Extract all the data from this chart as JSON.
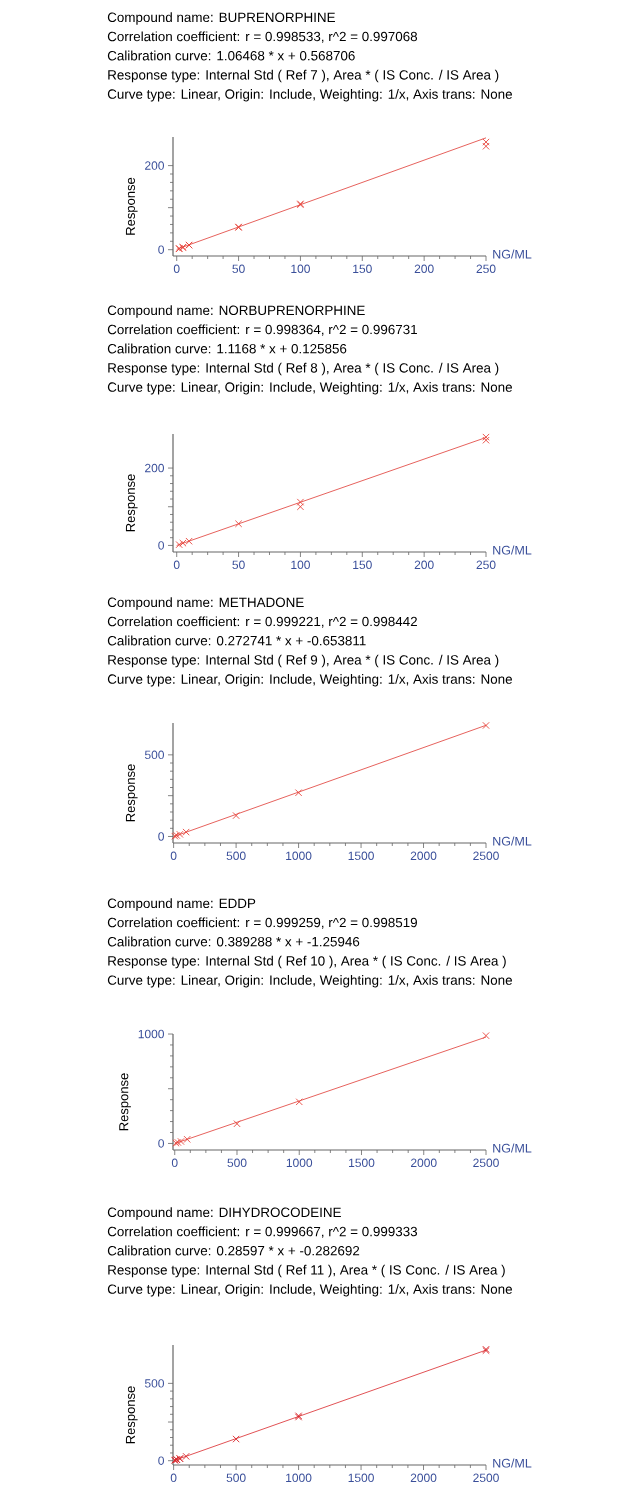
{
  "chart_data": [
    {
      "type": "scatter",
      "title": "Compound name: BUPRENORPHINE",
      "annotations": [
        "Correlation coefficient: r = 0.998533, r^2 = 0.997068",
        "Calibration curve: 1.06468 * x + 0.568706",
        "Response type: Internal Std ( Ref 7 ), Area * ( IS Conc. / IS Area )",
        "Curve type: Linear, Origin: Include, Weighting: 1/x, Axis trans: None"
      ],
      "xlabel": "NG/ML",
      "ylabel": "Response",
      "xlim": [
        -3,
        250
      ],
      "ylim": [
        -15,
        268
      ],
      "xticks": [
        0,
        50,
        100,
        150,
        200,
        250
      ],
      "yticks": [
        0,
        {
          "value": 100,
          "label": null
        },
        200
      ],
      "series": [
        {
          "type": "scatter",
          "marker": "cross",
          "color": "#e8453c",
          "x": [
            2,
            2,
            5,
            5,
            10,
            10,
            50,
            50,
            100,
            100,
            250,
            250
          ],
          "values": [
            2,
            3,
            5,
            6,
            11,
            11,
            53,
            54,
            107,
            109,
            256,
            246
          ]
        },
        {
          "type": "line",
          "color": "#e03a33",
          "x": [
            0,
            250
          ],
          "values": [
            1,
            266
          ]
        }
      ]
    },
    {
      "type": "scatter",
      "title": "Compound name: NORBUPRENORPHINE",
      "annotations": [
        "Correlation coefficient: r = 0.998364, r^2 = 0.996731",
        "Calibration curve: 1.1168 * x + 0.125856",
        "Response type: Internal Std ( Ref 8 ), Area * ( IS Conc. / IS Area )",
        "Curve type: Linear, Origin: Include, Weighting: 1/x, Axis trans: None"
      ],
      "xlabel": "NG/ML",
      "ylabel": "Response",
      "xlim": [
        -3,
        250
      ],
      "ylim": [
        -17,
        288
      ],
      "xticks": [
        0,
        50,
        100,
        150,
        200,
        250
      ],
      "yticks": [
        0,
        {
          "value": 100,
          "label": null
        },
        200
      ],
      "series": [
        {
          "type": "scatter",
          "marker": "cross",
          "color": "#e8453c",
          "x": [
            2,
            5,
            10,
            50,
            100,
            100,
            250,
            250
          ],
          "values": [
            2,
            6,
            11,
            56,
            112,
            100,
            280,
            272
          ]
        },
        {
          "type": "line",
          "color": "#e03a33",
          "x": [
            0,
            250
          ],
          "values": [
            0,
            279
          ]
        }
      ]
    },
    {
      "type": "scatter",
      "title": "Compound name: METHADONE",
      "annotations": [
        "Correlation coefficient: r = 0.999221, r^2 = 0.998442",
        "Calibration curve: 0.272741 * x + -0.653811",
        "Response type: Internal Std ( Ref 9 ), Area * ( IS Conc. / IS Area )",
        "Curve type: Linear, Origin: Include, Weighting: 1/x, Axis trans: None"
      ],
      "xlabel": "NG/ML",
      "ylabel": "Response",
      "xlim": [
        -5,
        2500
      ],
      "ylim": [
        -40,
        695
      ],
      "xticks": [
        0,
        500,
        1000,
        1500,
        2000,
        2500
      ],
      "yticks": [
        0,
        {
          "value": 250,
          "label": null
        },
        500
      ],
      "series": [
        {
          "type": "scatter",
          "marker": "cross",
          "color": "#e8453c",
          "x": [
            10,
            25,
            50,
            100,
            500,
            1000,
            2500
          ],
          "values": [
            2,
            6,
            13,
            27,
            128,
            268,
            680
          ]
        },
        {
          "type": "line",
          "color": "#e03a33",
          "x": [
            0,
            2500
          ],
          "values": [
            -1,
            681
          ]
        }
      ]
    },
    {
      "type": "scatter",
      "title": "Compound name: EDDP",
      "annotations": [
        "Correlation coefficient: r = 0.999259, r^2 = 0.998519",
        "Calibration curve: 0.389288 * x + -1.25946",
        "Response type: Internal Std ( Ref 10 ), Area * ( IS Conc. / IS Area )",
        "Curve type: Linear, Origin: Include, Weighting: 1/x, Axis trans: None"
      ],
      "xlabel": "NG/ML",
      "ylabel": "Response",
      "xlim": [
        -14,
        2500
      ],
      "ylim": [
        -60,
        1000
      ],
      "xticks": [
        0,
        500,
        1000,
        1500,
        2000,
        2500
      ],
      "yticks": [
        0,
        {
          "value": 500,
          "label": null
        },
        1000
      ],
      "series": [
        {
          "type": "scatter",
          "marker": "cross",
          "color": "#e8453c",
          "x": [
            10,
            25,
            50,
            100,
            500,
            1000,
            2500
          ],
          "values": [
            3,
            9,
            18,
            38,
            180,
            380,
            985
          ]
        },
        {
          "type": "line",
          "color": "#e03a33",
          "x": [
            0,
            2500
          ],
          "values": [
            -1,
            972
          ]
        }
      ]
    },
    {
      "type": "scatter",
      "title": "Compound name: DIHYDROCODEINE",
      "annotations": [
        "Correlation coefficient: r = 0.999667, r^2 = 0.999333",
        "Calibration curve: 0.28597 * x + -0.282692",
        "Response type: Internal Std ( Ref 11 ), Area * ( IS Conc. / IS Area )",
        "Curve type: Linear, Origin: Include, Weighting: 1/x, Axis trans: None"
      ],
      "xlabel": "NG/ML",
      "ylabel": "Response",
      "xlim": [
        -5,
        2500
      ],
      "ylim": [
        -28,
        748
      ],
      "xticks": [
        0,
        500,
        1000,
        1500,
        2000,
        2500
      ],
      "yticks": [
        0,
        {
          "value": 250,
          "label": null
        },
        500
      ],
      "series": [
        {
          "type": "scatter",
          "marker": "cross",
          "color": "#d9262a",
          "x": [
            10,
            10,
            25,
            25,
            50,
            50,
            100,
            500,
            1000,
            1000,
            2500,
            2500
          ],
          "values": [
            2,
            4,
            6,
            8,
            14,
            13,
            28,
            140,
            282,
            290,
            712,
            720
          ]
        },
        {
          "type": "line",
          "color": "#d9262a",
          "x": [
            0,
            2500
          ],
          "values": [
            0,
            715
          ]
        }
      ]
    }
  ]
}
